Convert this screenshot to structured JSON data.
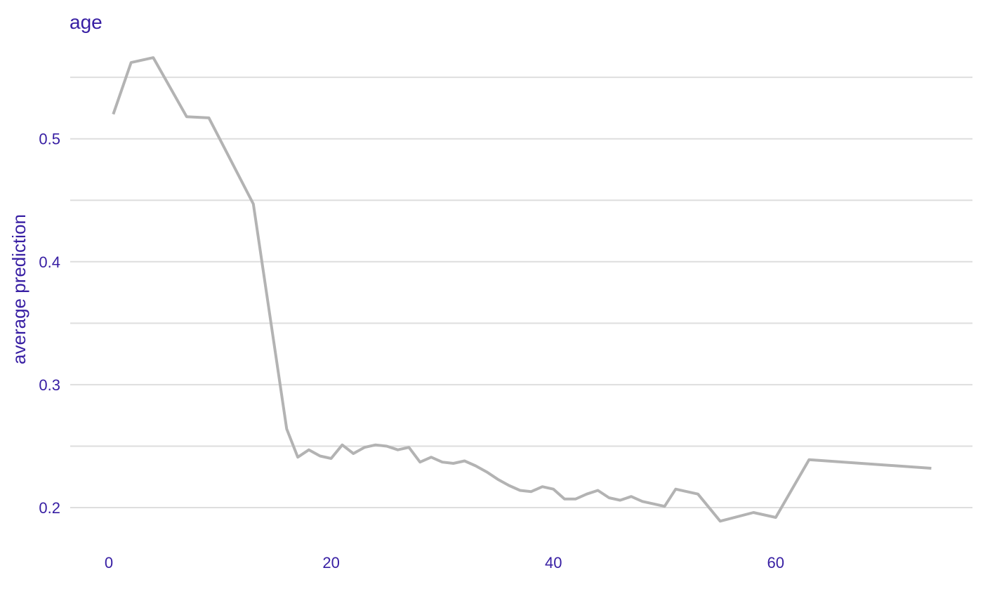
{
  "chart_data": {
    "type": "line",
    "title": "age",
    "xlabel": "",
    "ylabel": "average prediction",
    "xlim": [
      0,
      74
    ],
    "ylim": [
      0.2,
      0.55
    ],
    "xticks": [
      0,
      20,
      40,
      60
    ],
    "xtick_labels": [
      "0",
      "20",
      "40",
      "60"
    ],
    "yticks": [
      0.2,
      0.3,
      0.4,
      0.5
    ],
    "ytick_labels": [
      "0.2",
      "0.3",
      "0.4",
      "0.5"
    ],
    "ygrid": [
      0.2,
      0.25,
      0.3,
      0.35,
      0.4,
      0.45,
      0.5,
      0.55
    ],
    "grid": "horizontal",
    "legend": "none",
    "colors": {
      "line": "#b3b3b3",
      "text": "#371ea3",
      "grid": "#dedede"
    },
    "x": [
      0.4,
      2,
      4,
      7,
      9,
      13,
      16,
      17,
      18,
      19,
      20,
      21,
      22,
      23,
      24,
      25,
      26,
      27,
      28,
      29,
      30,
      31,
      32,
      33,
      34,
      35,
      36,
      37,
      38,
      39,
      40,
      41,
      42,
      43,
      44,
      45,
      46,
      47,
      48,
      49,
      50,
      51,
      53,
      55,
      58,
      60,
      63,
      74
    ],
    "y": [
      0.52,
      0.562,
      0.566,
      0.518,
      0.517,
      0.447,
      0.264,
      0.241,
      0.247,
      0.242,
      0.24,
      0.251,
      0.244,
      0.249,
      0.251,
      0.25,
      0.247,
      0.249,
      0.237,
      0.241,
      0.237,
      0.236,
      0.238,
      0.234,
      0.229,
      0.223,
      0.218,
      0.214,
      0.213,
      0.217,
      0.215,
      0.207,
      0.207,
      0.211,
      0.214,
      0.208,
      0.206,
      0.209,
      0.205,
      0.203,
      0.201,
      0.215,
      0.211,
      0.189,
      0.196,
      0.192,
      0.239,
      0.232
    ]
  }
}
